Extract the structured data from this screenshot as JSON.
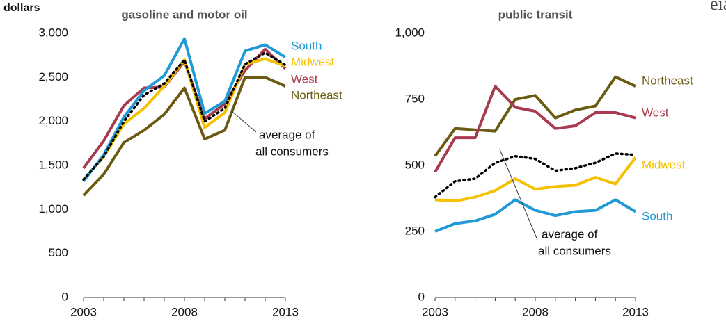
{
  "logo": "eia",
  "chart_data": [
    {
      "type": "line",
      "title": "gasoline and motor oil",
      "y_label": "dollars",
      "x": [
        2003,
        2004,
        2005,
        2006,
        2007,
        2008,
        2009,
        2010,
        2011,
        2012,
        2013
      ],
      "xlim": [
        2003,
        2013
      ],
      "xticks": [
        2003,
        2008,
        2013
      ],
      "ylim": [
        0,
        3000
      ],
      "yticks": [
        0,
        500,
        {
          "value": 1000,
          "label": "1,000"
        },
        {
          "value": 1500,
          "label": "1,500"
        },
        {
          "value": 2000,
          "label": "2,000"
        },
        {
          "value": 2500,
          "label": "2,500"
        },
        {
          "value": 3000,
          "label": "3,000"
        }
      ],
      "series": [
        {
          "name": "Northeast",
          "color": "#6b5a12",
          "values": [
            1160,
            1400,
            1760,
            1900,
            2080,
            2380,
            1800,
            1900,
            2500,
            2500,
            2400
          ]
        },
        {
          "name": "West",
          "color": "#a83b4f",
          "values": [
            1470,
            1780,
            2180,
            2380,
            2390,
            2680,
            2030,
            2200,
            2580,
            2820,
            2600
          ]
        },
        {
          "name": "Midwest",
          "color": "#f5c000",
          "values": [
            1340,
            1600,
            1970,
            2150,
            2400,
            2700,
            1930,
            2100,
            2650,
            2710,
            2630
          ]
        },
        {
          "name": "South",
          "color": "#1f9ad6",
          "values": [
            1320,
            1620,
            2050,
            2350,
            2520,
            2940,
            2090,
            2230,
            2800,
            2870,
            2730
          ]
        },
        {
          "color": "#000000",
          "dashed": true,
          "values": [
            1340,
            1600,
            2000,
            2300,
            2430,
            2700,
            2000,
            2150,
            2650,
            2780,
            2640
          ]
        }
      ],
      "annotation": [
        "average of",
        "all consumers"
      ]
    },
    {
      "type": "line",
      "title": "public transit",
      "x": [
        2003,
        2004,
        2005,
        2006,
        2007,
        2008,
        2009,
        2010,
        2011,
        2012,
        2013
      ],
      "xlim": [
        2003,
        2013
      ],
      "xticks": [
        2003,
        2008,
        2013
      ],
      "ylim": [
        0,
        1000
      ],
      "yticks": [
        0,
        250,
        500,
        750,
        {
          "value": 1000,
          "label": "1,000"
        }
      ],
      "series": [
        {
          "name": "Northeast",
          "color": "#6b5a12",
          "values": [
            535,
            640,
            635,
            630,
            750,
            765,
            680,
            710,
            725,
            835,
            800
          ]
        },
        {
          "name": "West",
          "color": "#a83b4f",
          "values": [
            475,
            605,
            605,
            800,
            720,
            705,
            640,
            650,
            700,
            700,
            680
          ]
        },
        {
          "name": "Midwest",
          "color": "#f5c000",
          "values": [
            370,
            365,
            380,
            405,
            450,
            410,
            420,
            425,
            455,
            430,
            530
          ]
        },
        {
          "name": "South",
          "color": "#1f9ad6",
          "values": [
            250,
            280,
            290,
            315,
            370,
            330,
            310,
            325,
            330,
            370,
            325
          ]
        },
        {
          "color": "#000000",
          "dashed": true,
          "values": [
            380,
            440,
            450,
            510,
            535,
            525,
            480,
            490,
            510,
            545,
            540
          ]
        }
      ],
      "annotation": [
        "average of",
        "all consumers"
      ]
    }
  ]
}
